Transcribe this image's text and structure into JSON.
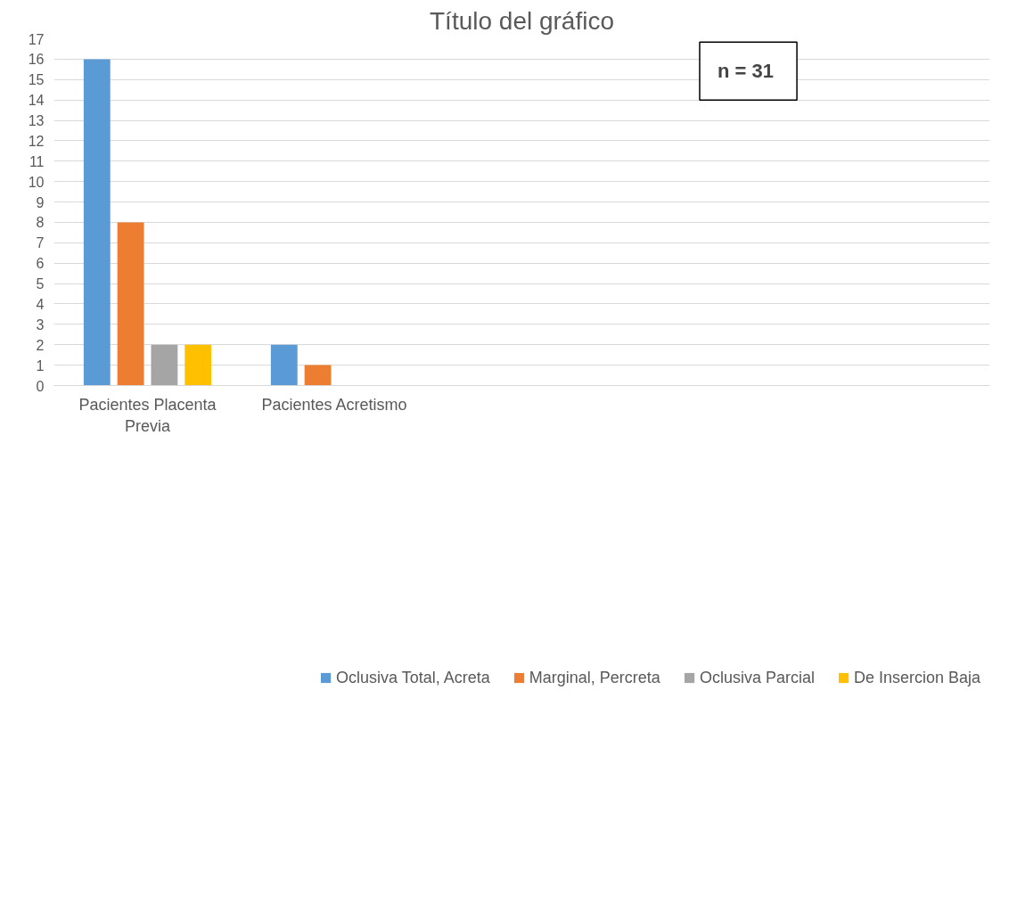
{
  "chart_data": {
    "type": "bar",
    "title": "Título del gráfico",
    "categories": [
      "Pacientes Placenta Previa",
      "Pacientes Acretismo",
      null,
      null,
      null
    ],
    "series": [
      {
        "name": "Oclusiva Total, Acreta",
        "color": "#5b9bd5",
        "values": [
          16,
          2,
          null,
          null,
          null
        ]
      },
      {
        "name": "Marginal, Percreta",
        "color": "#ed7d31",
        "values": [
          8,
          1,
          null,
          null,
          null
        ]
      },
      {
        "name": "Oclusiva Parcial",
        "color": "#a5a5a5",
        "values": [
          2,
          null,
          null,
          null,
          null
        ]
      },
      {
        "name": "De Insercion Baja",
        "color": "#ffc000",
        "values": [
          2,
          null,
          null,
          null,
          null
        ]
      }
    ],
    "ylim": [
      0,
      17
    ],
    "yticks": [
      0,
      1,
      2,
      3,
      4,
      5,
      6,
      7,
      8,
      9,
      10,
      11,
      12,
      13,
      14,
      15,
      16,
      17
    ],
    "grid": "y",
    "legend": "bottom",
    "annotations": [
      "n =  31"
    ]
  }
}
